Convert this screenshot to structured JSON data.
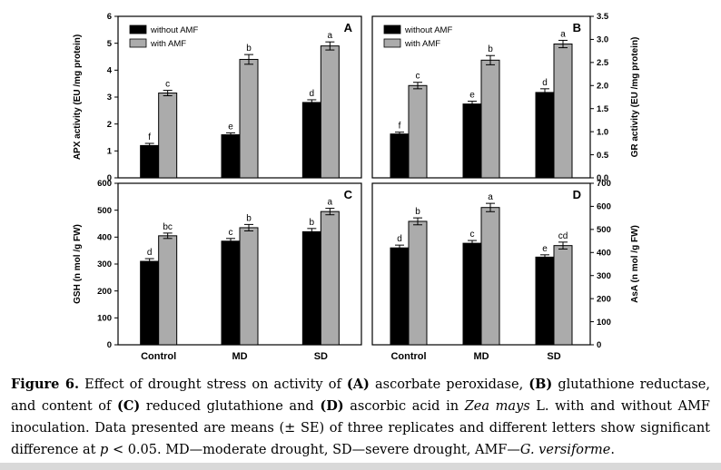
{
  "figure": {
    "colors": {
      "without_amf": "#000000",
      "with_amf": "#ababab",
      "axis": "#000000"
    }
  },
  "chart_data": [
    {
      "type": "bar",
      "panel": "A",
      "title": "",
      "xlabel": "",
      "ylabel": "APX activity (EU /mg protein)",
      "axis_side": "left",
      "ylim": [
        0,
        6
      ],
      "ytick_step": 1,
      "ytick_decimals": 0,
      "categories": [
        "Control",
        "MD",
        "SD"
      ],
      "show_xticklabels": false,
      "legend": true,
      "legend_position": "top-left",
      "series": [
        {
          "name": "without AMF",
          "color_key": "without_amf",
          "values": [
            1.2,
            1.6,
            2.8
          ],
          "se": [
            0.08,
            0.07,
            0.1
          ],
          "letters": [
            "f",
            "e",
            "d"
          ]
        },
        {
          "name": "with AMF",
          "color_key": "with_amf",
          "values": [
            3.15,
            4.4,
            4.9
          ],
          "se": [
            0.1,
            0.18,
            0.15
          ],
          "letters": [
            "c",
            "b",
            "a"
          ]
        }
      ]
    },
    {
      "type": "bar",
      "panel": "B",
      "title": "",
      "xlabel": "",
      "ylabel": "GR activity (EU /mg protein)",
      "axis_side": "right",
      "ylim": [
        0,
        3.5
      ],
      "ytick_step": 0.5,
      "ytick_decimals": 1,
      "categories": [
        "Control",
        "MD",
        "SD"
      ],
      "show_xticklabels": false,
      "legend": true,
      "legend_position": "top-left",
      "series": [
        {
          "name": "without AMF",
          "color_key": "without_amf",
          "values": [
            0.95,
            1.6,
            1.85
          ],
          "se": [
            0.04,
            0.06,
            0.08
          ],
          "letters": [
            "f",
            "e",
            "d"
          ]
        },
        {
          "name": "with AMF",
          "color_key": "with_amf",
          "values": [
            2.0,
            2.55,
            2.9
          ],
          "se": [
            0.07,
            0.1,
            0.08
          ],
          "letters": [
            "c",
            "b",
            "a"
          ]
        }
      ]
    },
    {
      "type": "bar",
      "panel": "C",
      "title": "",
      "xlabel": "",
      "ylabel": "GSH (n mol /g FW)",
      "axis_side": "left",
      "ylim": [
        0,
        600
      ],
      "ytick_step": 100,
      "ytick_decimals": 0,
      "categories": [
        "Control",
        "MD",
        "SD"
      ],
      "show_xticklabels": true,
      "legend": false,
      "legend_position": "",
      "series": [
        {
          "name": "without AMF",
          "color_key": "without_amf",
          "values": [
            310,
            385,
            420
          ],
          "se": [
            10,
            10,
            12
          ],
          "letters": [
            "d",
            "c",
            "b"
          ]
        },
        {
          "name": "with AMF",
          "color_key": "with_amf",
          "values": [
            405,
            435,
            495
          ],
          "se": [
            10,
            12,
            12
          ],
          "letters": [
            "bc",
            "b",
            "a"
          ]
        }
      ]
    },
    {
      "type": "bar",
      "panel": "D",
      "title": "",
      "xlabel": "",
      "ylabel": "AsA (n mol /g FW)",
      "axis_side": "right",
      "ylim": [
        0,
        700
      ],
      "ytick_step": 100,
      "ytick_decimals": 0,
      "categories": [
        "Control",
        "MD",
        "SD"
      ],
      "show_xticklabels": true,
      "legend": false,
      "legend_position": "",
      "series": [
        {
          "name": "without AMF",
          "color_key": "without_amf",
          "values": [
            420,
            440,
            380
          ],
          "se": [
            12,
            12,
            10
          ],
          "letters": [
            "d",
            "c",
            "e"
          ]
        },
        {
          "name": "with AMF",
          "color_key": "with_amf",
          "values": [
            535,
            595,
            430
          ],
          "se": [
            15,
            18,
            15
          ],
          "letters": [
            "b",
            "a",
            "cd"
          ]
        }
      ]
    }
  ],
  "caption": {
    "segments": [
      {
        "text": "Figure 6.",
        "bold": true
      },
      {
        "text": " Effect of drought stress on activity of "
      },
      {
        "text": "(A)",
        "bold": true
      },
      {
        "text": " ascorbate peroxidase, "
      },
      {
        "text": "(B)",
        "bold": true
      },
      {
        "text": " glutathione reductase, and content of "
      },
      {
        "text": "(C)",
        "bold": true
      },
      {
        "text": " reduced glutathione and "
      },
      {
        "text": "(D)",
        "bold": true
      },
      {
        "text": " ascorbic acid in "
      },
      {
        "text": "Zea mays",
        "italic": true
      },
      {
        "text": " L. with and without AMF inoculation. Data presented are means (± SE) of three replicates and different letters show significant difference at "
      },
      {
        "text": "p",
        "italic": true
      },
      {
        "text": " < 0.05. MD—moderate drought, SD—severe drought, AMF—"
      },
      {
        "text": "G. versiforme",
        "italic": true
      },
      {
        "text": "."
      }
    ]
  }
}
